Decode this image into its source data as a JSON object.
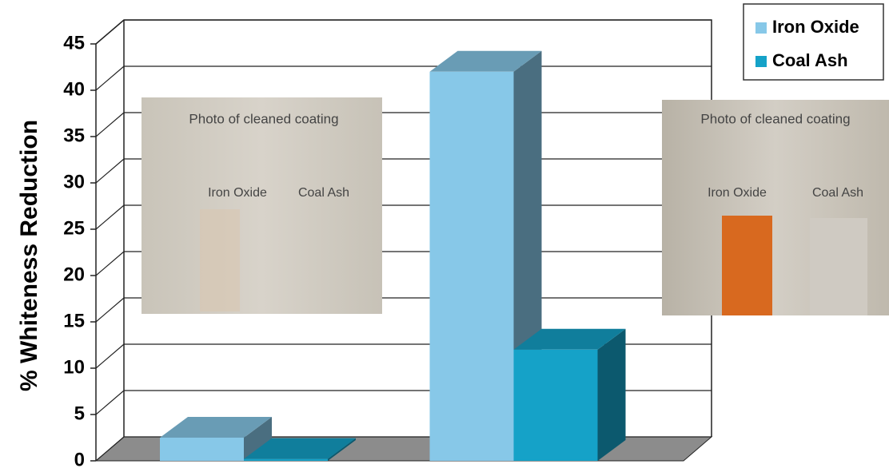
{
  "chart_data": {
    "type": "bar3d",
    "y_label": "% Whiteness Reduction",
    "categories": [
      null,
      null
    ],
    "series": [
      {
        "name": "Iron Oxide",
        "color": "#87c8e8",
        "values": [
          2.5,
          42
        ]
      },
      {
        "name": "Coal Ash",
        "color": "#15a2c8",
        "values": [
          0.2,
          12
        ]
      }
    ],
    "ylim": [
      0,
      45
    ],
    "yticks": [
      0,
      5,
      10,
      15,
      20,
      25,
      30,
      35,
      40,
      45
    ],
    "grid": true,
    "legend": "top-right",
    "insets": [
      {
        "title": "Photo of cleaned coating",
        "labels": [
          "Iron Oxide",
          "Coal Ash"
        ]
      },
      {
        "title": "Photo of cleaned coating",
        "labels": [
          "Iron Oxide",
          "Coal Ash"
        ]
      }
    ]
  }
}
